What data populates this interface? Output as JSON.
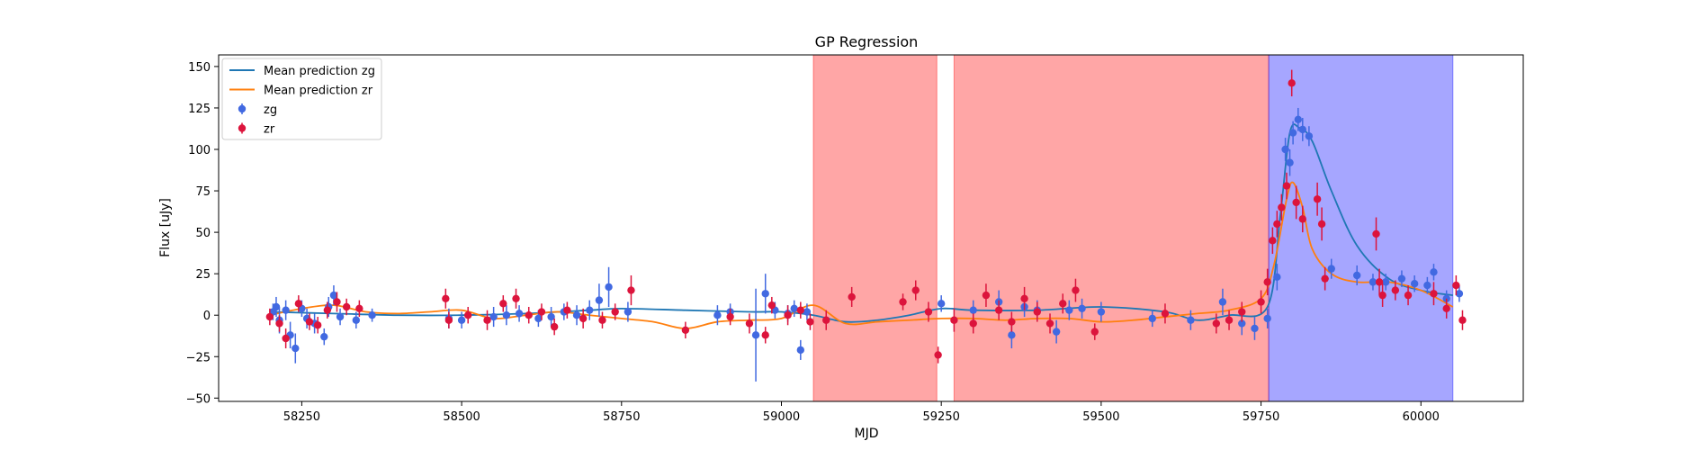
{
  "chart_data": {
    "type": "scatter",
    "title": "GP Regression",
    "xlabel": "MJD",
    "ylabel": "Flux [uJy]",
    "xlim": [
      58120,
      60160
    ],
    "ylim": [
      -52,
      157
    ],
    "xticks": [
      58250,
      58500,
      58750,
      59000,
      59250,
      59500,
      59750,
      60000
    ],
    "yticks": [
      -50,
      -25,
      0,
      25,
      50,
      75,
      100,
      125,
      150
    ],
    "grid": false,
    "legend_position": "upper left",
    "shaded_regions": [
      {
        "x0": 59050,
        "x1": 59243,
        "color": "#ff0000",
        "alpha": 0.35
      },
      {
        "x0": 59270,
        "x1": 59762,
        "color": "#ff0000",
        "alpha": 0.35
      },
      {
        "x0": 59762,
        "x1": 60050,
        "color": "#0000ff",
        "alpha": 0.35
      }
    ],
    "series": [
      {
        "name": "Mean prediction zg",
        "kind": "line",
        "color": "#1f77b4",
        "x": [
          58200,
          58300,
          58400,
          58500,
          58600,
          58700,
          58750,
          58850,
          58950,
          59000,
          59050,
          59100,
          59150,
          59200,
          59250,
          59300,
          59400,
          59500,
          59600,
          59650,
          59700,
          59760,
          59780,
          59795,
          59810,
          59830,
          59860,
          59900,
          59950,
          60000,
          60050
        ],
        "y": [
          2,
          1,
          0,
          0,
          1,
          3,
          4,
          3,
          2,
          2,
          0,
          -4,
          -3,
          0,
          4,
          3,
          3,
          5,
          2,
          -3,
          0,
          5,
          60,
          110,
          113,
          105,
          75,
          42,
          22,
          15,
          12
        ]
      },
      {
        "name": "Mean prediction zr",
        "kind": "line",
        "color": "#ff7f0e",
        "x": [
          58200,
          58250,
          58300,
          58350,
          58400,
          58450,
          58500,
          58550,
          58600,
          58650,
          58700,
          58750,
          58800,
          58850,
          58900,
          58950,
          59000,
          59050,
          59100,
          59150,
          59200,
          59250,
          59300,
          59350,
          59400,
          59450,
          59500,
          59550,
          59600,
          59650,
          59700,
          59750,
          59770,
          59790,
          59800,
          59815,
          59830,
          59860,
          59900,
          59950,
          60000,
          60050
        ],
        "y": [
          0,
          4,
          6,
          2,
          1,
          2,
          3,
          -2,
          0,
          2,
          0,
          -2,
          -4,
          -8,
          -4,
          -3,
          -2,
          6,
          -5,
          -4,
          -3,
          -2,
          -2,
          -3,
          -2,
          -2,
          -4,
          -3,
          -1,
          1,
          3,
          10,
          30,
          70,
          80,
          65,
          40,
          25,
          20,
          20,
          15,
          5
        ]
      },
      {
        "name": "zg",
        "kind": "errorbar",
        "color": "#4169e1",
        "x": [
          58205,
          58210,
          58215,
          58225,
          58232,
          58240,
          58250,
          58258,
          58270,
          58285,
          58292,
          58300,
          58310,
          58335,
          58360,
          58480,
          58500,
          58550,
          58570,
          58590,
          58620,
          58640,
          58660,
          58680,
          58700,
          58715,
          58730,
          58760,
          58900,
          58920,
          58960,
          58975,
          58990,
          59010,
          59020,
          59030,
          59040,
          59250,
          59300,
          59340,
          59360,
          59380,
          59400,
          59430,
          59450,
          59470,
          59500,
          59580,
          59640,
          59690,
          59720,
          59740,
          59760,
          59775,
          59788,
          59795,
          59800,
          59808,
          59815,
          59825,
          59860,
          59900,
          59925,
          59945,
          59970,
          59990,
          60010,
          60020,
          60040,
          60060
        ],
        "y": [
          2,
          5,
          -3,
          3,
          -12,
          -20,
          4,
          -2,
          -5,
          -13,
          5,
          12,
          -1,
          -3,
          0,
          -2,
          -3,
          -1,
          0,
          1,
          -2,
          -1,
          2,
          0,
          3,
          9,
          17,
          2,
          0,
          2,
          -12,
          13,
          3,
          1,
          4,
          -21,
          2,
          7,
          3,
          8,
          -12,
          5,
          3,
          -10,
          3,
          4,
          2,
          -2,
          -3,
          8,
          -5,
          -8,
          -2,
          23,
          100,
          92,
          110,
          118,
          112,
          108,
          28,
          24,
          20,
          20,
          22,
          19,
          18,
          26,
          10,
          13
        ],
        "yerr": [
          5,
          6,
          8,
          6,
          8,
          9,
          5,
          6,
          6,
          5,
          6,
          6,
          5,
          5,
          4,
          6,
          5,
          6,
          6,
          5,
          5,
          6,
          5,
          6,
          6,
          10,
          12,
          6,
          6,
          5,
          28,
          12,
          5,
          5,
          5,
          6,
          5,
          5,
          6,
          7,
          8,
          6,
          6,
          7,
          6,
          6,
          6,
          5,
          6,
          8,
          7,
          7,
          6,
          8,
          7,
          8,
          7,
          7,
          7,
          6,
          6,
          6,
          5,
          5,
          5,
          5,
          5,
          5,
          5,
          5
        ]
      },
      {
        "name": "zr",
        "kind": "errorbar",
        "color": "#dc143c",
        "x": [
          58200,
          58215,
          58225,
          58245,
          58262,
          58275,
          58290,
          58305,
          58320,
          58340,
          58475,
          58480,
          58510,
          58540,
          58565,
          58585,
          58605,
          58625,
          58645,
          58665,
          58690,
          58720,
          58740,
          58765,
          58850,
          58920,
          58950,
          58975,
          58985,
          59010,
          59030,
          59045,
          59070,
          59110,
          59190,
          59210,
          59230,
          59245,
          59270,
          59300,
          59320,
          59340,
          59360,
          59380,
          59400,
          59420,
          59440,
          59460,
          59490,
          59600,
          59680,
          59700,
          59720,
          59750,
          59760,
          59768,
          59775,
          59782,
          59790,
          59798,
          59805,
          59815,
          59838,
          59845,
          59850,
          59930,
          59935,
          59940,
          59960,
          59980,
          60020,
          60040,
          60055,
          60065
        ],
        "y": [
          -1,
          -5,
          -14,
          7,
          -4,
          -6,
          3,
          8,
          5,
          4,
          10,
          -3,
          0,
          -3,
          7,
          10,
          0,
          2,
          -7,
          3,
          -2,
          -3,
          2,
          15,
          -9,
          -1,
          -5,
          -12,
          6,
          0,
          3,
          -4,
          -3,
          11,
          8,
          15,
          2,
          -24,
          -3,
          -5,
          12,
          3,
          -4,
          10,
          2,
          -5,
          7,
          15,
          -10,
          1,
          -5,
          -3,
          2,
          8,
          20,
          45,
          55,
          65,
          78,
          140,
          68,
          58,
          70,
          55,
          22,
          49,
          20,
          12,
          15,
          12,
          13,
          4,
          18,
          -3
        ],
        "yerr": [
          5,
          5,
          6,
          5,
          5,
          5,
          5,
          6,
          5,
          5,
          6,
          5,
          5,
          6,
          5,
          6,
          5,
          5,
          5,
          5,
          6,
          5,
          5,
          9,
          5,
          5,
          6,
          5,
          5,
          6,
          5,
          5,
          6,
          6,
          5,
          6,
          6,
          5,
          7,
          6,
          7,
          6,
          6,
          7,
          6,
          6,
          6,
          7,
          5,
          6,
          6,
          6,
          6,
          7,
          8,
          8,
          8,
          8,
          8,
          8,
          10,
          8,
          10,
          10,
          7,
          10,
          8,
          7,
          6,
          6,
          7,
          6,
          6,
          6
        ]
      }
    ]
  }
}
